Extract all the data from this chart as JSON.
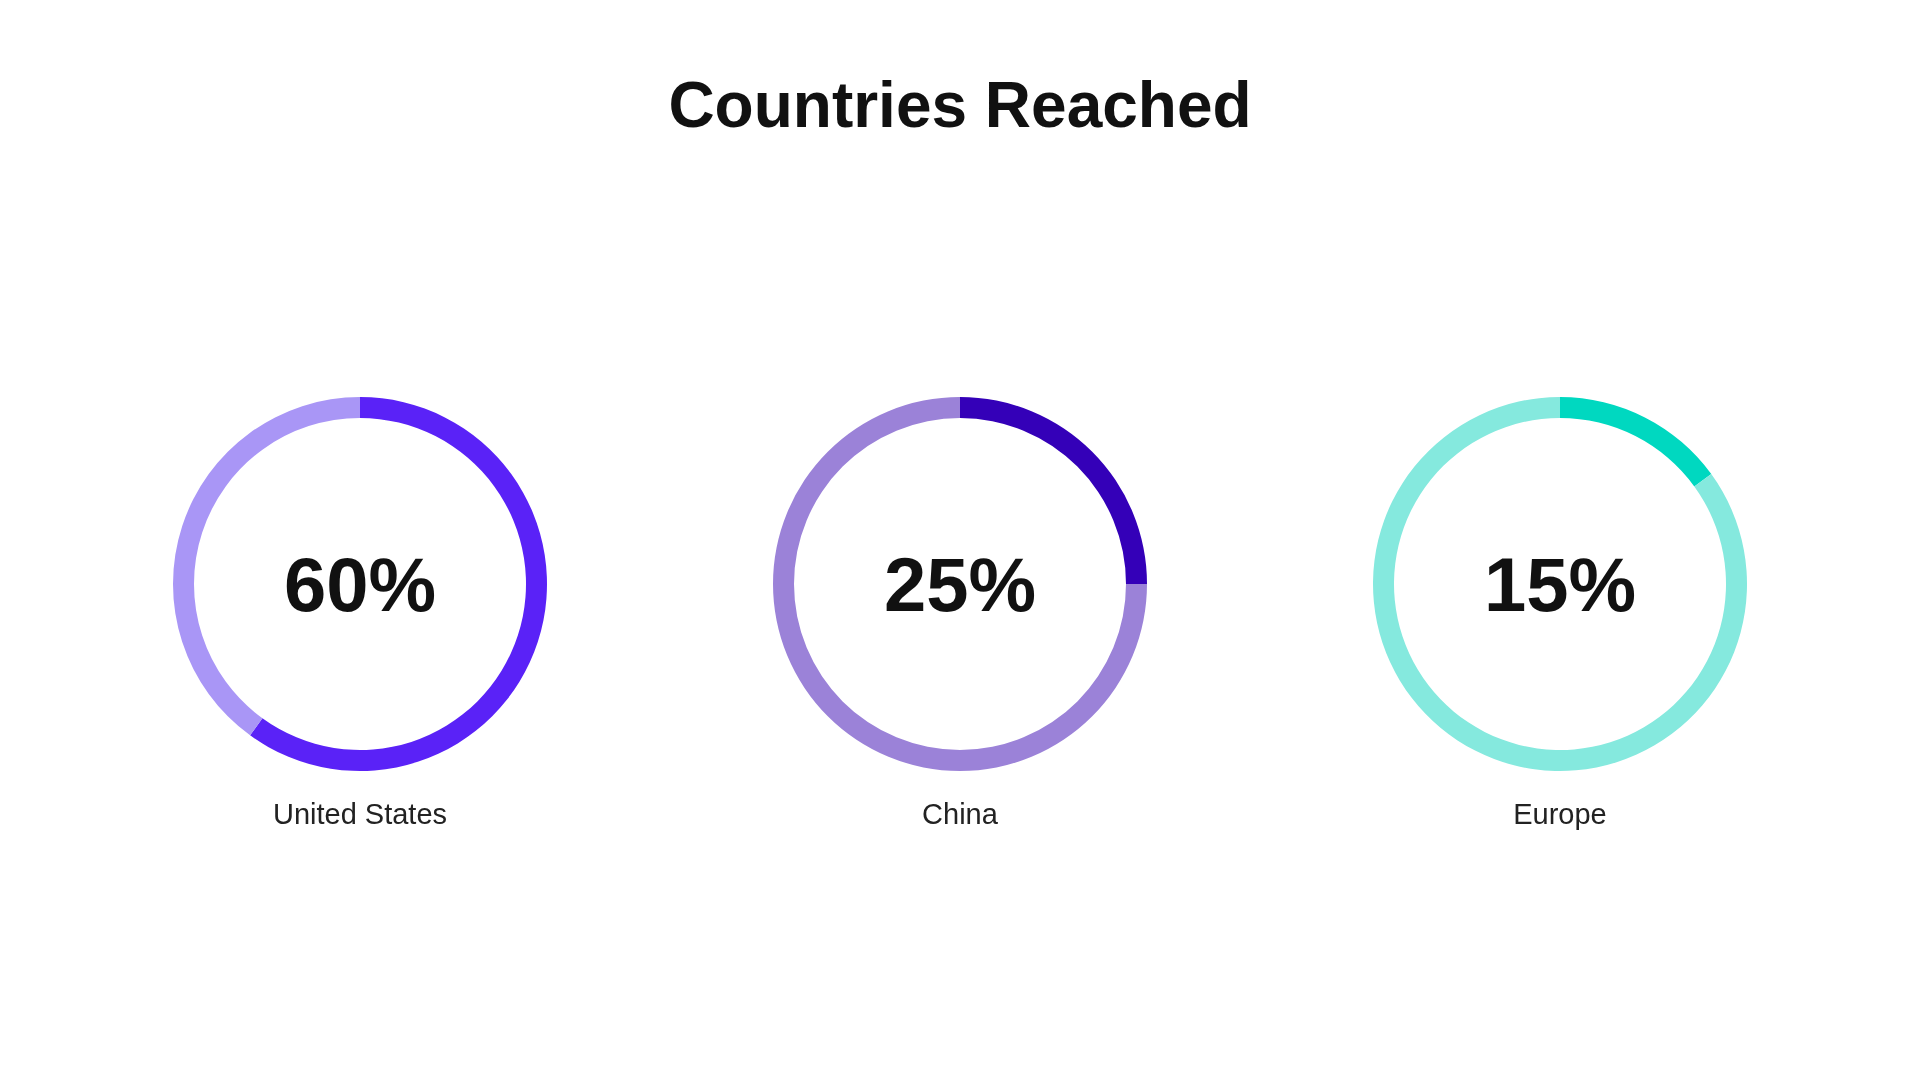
{
  "chart_data": [
    {
      "type": "other",
      "title": "Countries Reached"
    },
    {
      "type": "donut",
      "xlabel": "United States",
      "categories": [
        null,
        null
      ],
      "values": [
        60,
        40
      ],
      "colors": [
        "#5a22f7",
        "#a996f6"
      ],
      "annotations": [
        "60%"
      ]
    },
    {
      "type": "donut",
      "xlabel": "China",
      "categories": [
        null,
        null
      ],
      "values": [
        25,
        75
      ],
      "colors": [
        "#3400b8",
        "#9b82d8"
      ],
      "annotations": [
        "25%"
      ]
    },
    {
      "type": "donut",
      "xlabel": "Europe",
      "categories": [
        null,
        null
      ],
      "values": [
        15,
        85
      ],
      "colors": [
        "#00d8c0",
        "#85e9de"
      ],
      "annotations": [
        "15%"
      ]
    }
  ]
}
